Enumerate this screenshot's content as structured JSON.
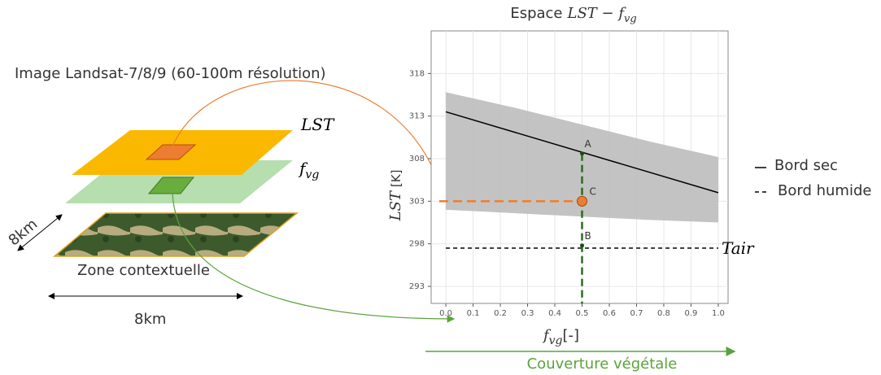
{
  "left_panel": {
    "title": "Image Landsat-7/8/9 (60-100m résolution)",
    "layer_labels": [
      {
        "main": "LST"
      },
      {
        "main": "f",
        "sub": "vg"
      }
    ],
    "scale_vertical": "8km",
    "zone_label": "Zone contextuelle",
    "scale_horizontal": "8km"
  },
  "chart_data": {
    "type": "scatter",
    "title_prefix": "Espace",
    "title_math": "LST − f",
    "title_sub": "vg",
    "y_label_math": "LST",
    "y_label_unit": "[K]",
    "x_label_math": "f",
    "x_label_sub": "vg",
    "x_label_unit": "[-]",
    "xlim": [
      -0.054,
      1.036
    ],
    "ylim": [
      291,
      323
    ],
    "xticks": [
      {
        "value": 0,
        "label": "0.0"
      },
      0.1,
      0.2,
      0.3,
      0.4,
      0.5,
      0.6,
      0.7,
      0.8,
      0.9,
      {
        "value": 1,
        "label": "1.0"
      }
    ],
    "yticks": [
      293,
      298,
      303,
      308,
      313,
      318
    ],
    "grid": true,
    "cloud": {
      "x": [
        0,
        0.25,
        0.5,
        0.75,
        1
      ],
      "upper": [
        315.8,
        314,
        312,
        310,
        308.2
      ],
      "lower": [
        302,
        301.6,
        301.2,
        300.8,
        300.5
      ],
      "color": "#bdbdbd"
    },
    "dry_edge": {
      "name": "Bord sec",
      "x": [
        0,
        1
      ],
      "values": [
        313.5,
        304
      ],
      "color": "#000000"
    },
    "wet_edge": {
      "name": "Bord humide",
      "label": "Tair",
      "x": [
        0,
        1
      ],
      "values": [
        297.5,
        297.5
      ],
      "color": "#000000"
    },
    "points": [
      {
        "label": "A",
        "x": 0.5,
        "value": 308.6
      },
      {
        "label": "C",
        "x": 0.5,
        "value": 303
      },
      {
        "label": "B",
        "x": 0.5,
        "value": 297.8
      }
    ]
  },
  "footer": "Couverture végétale"
}
